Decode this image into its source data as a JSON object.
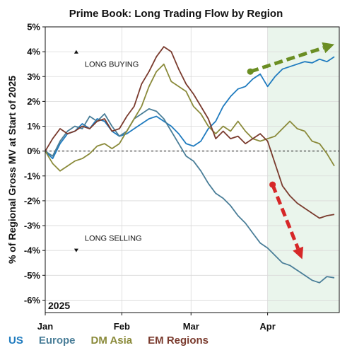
{
  "chart_data": {
    "type": "line",
    "title": "Prime Book: Long Trading Flow by Region",
    "ylabel": "% of Regional Gross MV at Start of 2025",
    "xlabel": "",
    "year_label": "2025",
    "ylim": [
      -6.5,
      5
    ],
    "y_ticks": [
      {
        "v": 5,
        "label": "5%"
      },
      {
        "v": 4,
        "label": "4%"
      },
      {
        "v": 3,
        "label": "3%"
      },
      {
        "v": 2,
        "label": "2%"
      },
      {
        "v": 1,
        "label": "1%"
      },
      {
        "v": 0,
        "label": "0%"
      },
      {
        "v": -1,
        "label": "-1%"
      },
      {
        "v": -2,
        "label": "-2%"
      },
      {
        "v": -3,
        "label": "-3%"
      },
      {
        "v": -4,
        "label": "-4%"
      },
      {
        "v": -5,
        "label": "-5%"
      },
      {
        "v": -6,
        "label": "-6%"
      }
    ],
    "x_ticks": [
      {
        "v": 0,
        "label": "Jan"
      },
      {
        "v": 31,
        "label": "Feb"
      },
      {
        "v": 59,
        "label": "Mar"
      },
      {
        "v": 90,
        "label": "Apr"
      }
    ],
    "xlim": [
      0,
      119
    ],
    "x_note": "x values are days since Jan 1, 2025",
    "shaded_region": [
      90,
      119
    ],
    "zero_line": true,
    "grid": true,
    "legend_placement": "bottom",
    "annotations": [
      {
        "text": "LONG BUYING",
        "direction": "up",
        "x": 24,
        "y": 3.5
      },
      {
        "text": "LONG SELLING",
        "direction": "down",
        "x": 24,
        "y": -3.5
      }
    ],
    "arrows": [
      {
        "color": "#6b8e23",
        "x1": 83,
        "y1": 3.2,
        "x2": 117,
        "y2": 4.3
      },
      {
        "color": "#d62728",
        "x1": 92,
        "y1": -1.35,
        "x2": 104,
        "y2": -4.35
      }
    ],
    "series": [
      {
        "name": "US",
        "color": "#1f7bbf",
        "x": [
          0,
          3,
          6,
          9,
          12,
          15,
          18,
          21,
          24,
          27,
          30,
          33,
          36,
          39,
          42,
          45,
          48,
          51,
          54,
          57,
          60,
          63,
          66,
          69,
          72,
          75,
          78,
          81,
          84,
          87,
          90,
          93,
          96,
          99,
          102,
          105,
          108,
          111,
          114,
          117
        ],
        "y": [
          0,
          -0.3,
          0.3,
          0.7,
          0.8,
          1.1,
          0.9,
          1.3,
          1.2,
          0.8,
          0.6,
          0.7,
          0.9,
          1.1,
          1.3,
          1.4,
          1.2,
          1.0,
          0.7,
          0.3,
          0.2,
          0.4,
          0.9,
          1.2,
          1.8,
          2.2,
          2.5,
          2.6,
          2.9,
          3.1,
          2.6,
          3.0,
          3.3,
          3.4,
          3.5,
          3.6,
          3.55,
          3.7,
          3.6,
          3.8
        ]
      },
      {
        "name": "Europe",
        "color": "#4a7e98",
        "x": [
          0,
          3,
          6,
          9,
          12,
          15,
          18,
          21,
          24,
          27,
          30,
          33,
          36,
          39,
          42,
          45,
          48,
          51,
          54,
          57,
          60,
          63,
          66,
          69,
          72,
          75,
          78,
          81,
          84,
          87,
          90,
          93,
          96,
          99,
          102,
          105,
          108,
          111,
          114,
          117
        ],
        "y": [
          0,
          -0.2,
          0.4,
          0.8,
          1.0,
          0.9,
          1.4,
          1.2,
          1.5,
          1.0,
          0.6,
          0.8,
          1.3,
          1.5,
          1.7,
          1.6,
          1.3,
          0.8,
          0.3,
          -0.2,
          -0.4,
          -0.8,
          -1.3,
          -1.7,
          -1.9,
          -2.2,
          -2.6,
          -2.9,
          -3.3,
          -3.7,
          -3.9,
          -4.2,
          -4.5,
          -4.6,
          -4.8,
          -5.0,
          -5.2,
          -5.3,
          -5.05,
          -5.1
        ]
      },
      {
        "name": "DM Asia",
        "color": "#8a8a3a",
        "x": [
          0,
          3,
          6,
          9,
          12,
          15,
          18,
          21,
          24,
          27,
          30,
          33,
          36,
          39,
          42,
          45,
          48,
          51,
          54,
          57,
          60,
          63,
          66,
          69,
          72,
          75,
          78,
          81,
          84,
          87,
          90,
          93,
          96,
          99,
          102,
          105,
          108,
          111,
          114,
          117
        ],
        "y": [
          0,
          -0.5,
          -0.8,
          -0.6,
          -0.4,
          -0.3,
          -0.1,
          0.2,
          0.3,
          0.1,
          0.3,
          0.8,
          1.3,
          1.8,
          2.6,
          3.2,
          3.5,
          2.8,
          2.6,
          2.4,
          1.8,
          1.5,
          1.0,
          0.7,
          1.0,
          0.8,
          1.2,
          0.8,
          0.5,
          0.4,
          0.5,
          0.6,
          0.9,
          1.2,
          0.9,
          0.8,
          0.4,
          0.3,
          -0.1,
          -0.6
        ]
      },
      {
        "name": "EM Regions",
        "color": "#7a3b2e",
        "x": [
          0,
          3,
          6,
          9,
          12,
          15,
          18,
          21,
          24,
          27,
          30,
          33,
          36,
          39,
          42,
          45,
          48,
          51,
          54,
          57,
          60,
          63,
          66,
          69,
          72,
          75,
          78,
          81,
          84,
          87,
          90,
          93,
          96,
          99,
          102,
          105,
          108,
          111,
          114,
          117
        ],
        "y": [
          0,
          0.5,
          0.9,
          0.7,
          0.8,
          1.0,
          0.9,
          1.2,
          1.3,
          0.8,
          0.9,
          1.4,
          1.8,
          2.7,
          3.2,
          3.8,
          4.2,
          4.0,
          3.3,
          2.7,
          2.3,
          1.8,
          1.3,
          0.5,
          0.8,
          0.5,
          0.6,
          0.3,
          0.5,
          0.7,
          0.4,
          -0.5,
          -1.4,
          -1.8,
          -2.1,
          -2.3,
          -2.5,
          -2.7,
          -2.6,
          -2.55
        ]
      }
    ]
  }
}
